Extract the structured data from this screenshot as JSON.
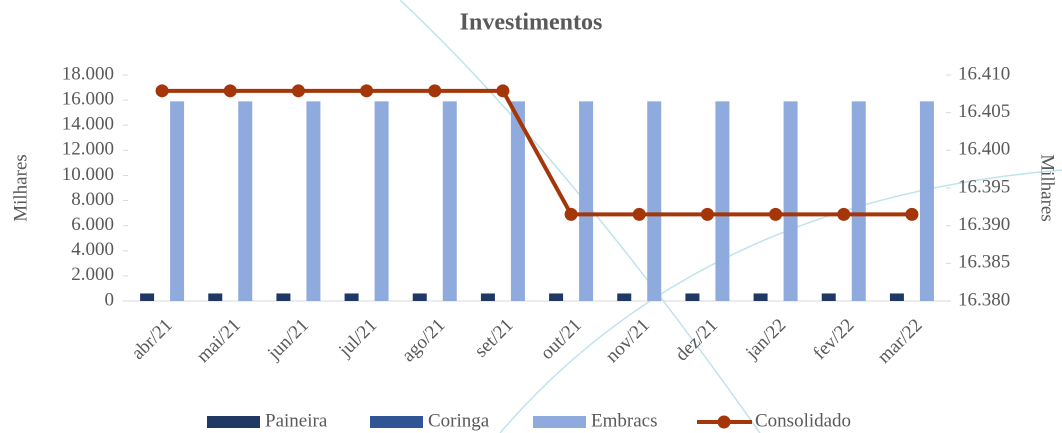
{
  "chart_data": {
    "type": "bar",
    "title": "Investimentos",
    "y_label": "Milhares",
    "y2_label": "Milhares",
    "categories": [
      "abr/21",
      "mai/21",
      "jun/21",
      "jul/21",
      "ago/21",
      "set/21",
      "out/21",
      "nov/21",
      "dez/21",
      "jan/22",
      "fev/22",
      "mar/22"
    ],
    "series": [
      {
        "name": "Paineira",
        "type": "bar",
        "color": "#203864",
        "values": [
          600,
          600,
          600,
          600,
          600,
          600,
          600,
          600,
          600,
          600,
          600,
          600
        ]
      },
      {
        "name": "Coringa",
        "type": "bar",
        "color": "#2f5597",
        "values": [
          0,
          0,
          0,
          0,
          0,
          0,
          0,
          0,
          0,
          0,
          0,
          0
        ]
      },
      {
        "name": "Embracs",
        "type": "bar",
        "color": "#8faadc",
        "values": [
          15900,
          15900,
          15900,
          15900,
          15900,
          15900,
          15900,
          15900,
          15900,
          15900,
          15900,
          15900
        ]
      },
      {
        "name": "Consolidado",
        "type": "line",
        "axis": "y2",
        "color": "#a5360a",
        "values": [
          16.4079,
          16.4079,
          16.4079,
          16.4079,
          16.4079,
          16.4079,
          16.3915,
          16.3915,
          16.3915,
          16.3915,
          16.3915,
          16.3915
        ]
      }
    ],
    "ylim": [
      0,
      18000
    ],
    "yticks": [
      0,
      {
        "value": 2000,
        "label": "2.000"
      },
      {
        "value": 4000,
        "label": "4.000"
      },
      {
        "value": 6000,
        "label": "6.000"
      },
      {
        "value": 8000,
        "label": "8.000"
      },
      {
        "value": 10000,
        "label": "10.000"
      },
      {
        "value": 12000,
        "label": "12.000"
      },
      {
        "value": 14000,
        "label": "14.000"
      },
      {
        "value": 16000,
        "label": "16.000"
      },
      {
        "value": 18000,
        "label": "18.000"
      }
    ],
    "y2lim": [
      16.38,
      16.41
    ],
    "y2ticks": [
      {
        "value": 16.38,
        "label": "16.380"
      },
      {
        "value": 16.385,
        "label": "16.385"
      },
      {
        "value": 16.39,
        "label": "16.390"
      },
      {
        "value": 16.395,
        "label": "16.395"
      },
      {
        "value": 16.4,
        "label": "16.400"
      },
      {
        "value": 16.405,
        "label": "16.405"
      },
      {
        "value": 16.41,
        "label": "16.410"
      }
    ],
    "legend": "bottom"
  }
}
